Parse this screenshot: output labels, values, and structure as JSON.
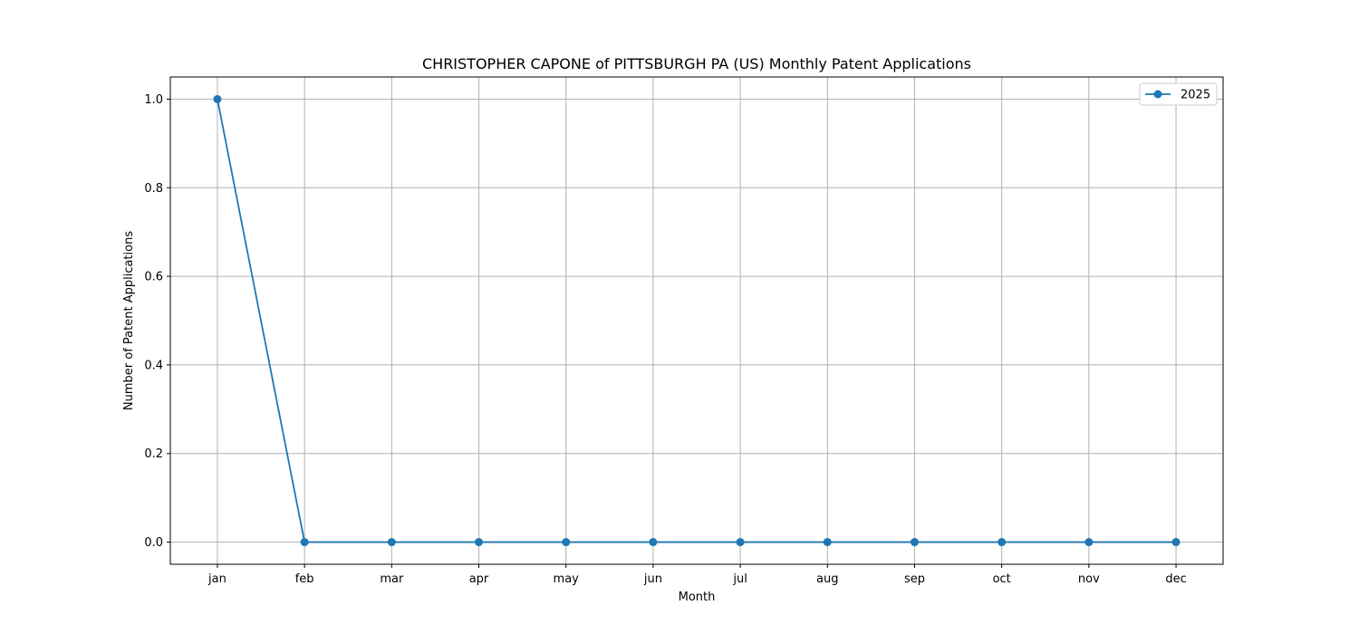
{
  "chart_data": {
    "type": "line",
    "title": "CHRISTOPHER CAPONE of PITTSBURGH PA (US) Monthly Patent Applications",
    "xlabel": "Month",
    "ylabel": "Number of Patent Applications",
    "categories": [
      "jan",
      "feb",
      "mar",
      "apr",
      "may",
      "jun",
      "jul",
      "aug",
      "sep",
      "oct",
      "nov",
      "dec"
    ],
    "series": [
      {
        "name": "2025",
        "values": [
          1,
          0,
          0,
          0,
          0,
          0,
          0,
          0,
          0,
          0,
          0,
          0
        ],
        "color": "#1f77b4",
        "marker": "circle"
      }
    ],
    "ylim": [
      -0.05,
      1.05
    ],
    "yticks": [
      0.0,
      0.2,
      0.4,
      0.6,
      0.8,
      1.0
    ],
    "ytick_labels": [
      "0.0",
      "0.2",
      "0.4",
      "0.6",
      "0.8",
      "1.0"
    ],
    "grid": true,
    "legend_position": "top-right"
  }
}
